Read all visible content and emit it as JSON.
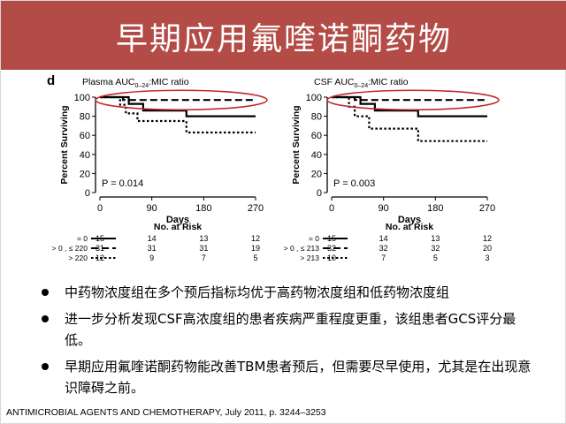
{
  "slide": {
    "title": "早期应用氟喹诺酮药物",
    "panel_letter": "d",
    "bullets": [
      "中药物浓度组在多个预后指标均优于高药物浓度组和低药物浓度组",
      "进一步分析发现CSF高浓度组的患者疾病严重程度更重，该组患者GCS评分最低。",
      "早期应用氟喹诺酮药物能改善TBM患者预后，但需要尽早使用，尤其是在出现意识障碍之前。"
    ],
    "citation": "ANTIMICROBIAL AGENTS AND CHEMOTHERAPY, July 2011, p. 3244–3253",
    "highlight_color": "#c0282d"
  },
  "chart_data": [
    {
      "type": "line",
      "subtype": "kaplan-meier",
      "title_prefix": "Plasma AUC",
      "title_subscript": "0–24",
      "title_suffix": ":MIC ratio",
      "xlabel": "Days",
      "ylabel": "Percent Surviving",
      "xticks": [
        0,
        90,
        180,
        270
      ],
      "yticks": [
        0,
        20,
        40,
        60,
        80,
        100
      ],
      "xlim": [
        0,
        270
      ],
      "ylim": [
        0,
        100
      ],
      "p_value": "P = 0.014",
      "risk_table_title": "No. at Risk",
      "series": [
        {
          "name": "= 0",
          "style": "solid",
          "steps": [
            [
              0,
              100
            ],
            [
              50,
              100
            ],
            [
              50,
              93
            ],
            [
              75,
              93
            ],
            [
              75,
              86
            ],
            [
              150,
              86
            ],
            [
              150,
              80
            ],
            [
              270,
              80
            ]
          ],
          "at_risk": [
            "15",
            "14",
            "13",
            "12"
          ]
        },
        {
          "name": "> 0 , ≤ 220",
          "style": "dashed",
          "steps": [
            [
              0,
              100
            ],
            [
              40,
              100
            ],
            [
              40,
              97
            ],
            [
              270,
              97
            ]
          ],
          "at_risk": [
            "31",
            "31",
            "31",
            "19"
          ]
        },
        {
          "name": "> 220",
          "style": "dotted",
          "steps": [
            [
              0,
              100
            ],
            [
              35,
              100
            ],
            [
              35,
              92
            ],
            [
              45,
              92
            ],
            [
              45,
              83
            ],
            [
              65,
              83
            ],
            [
              65,
              75
            ],
            [
              150,
              75
            ],
            [
              150,
              63
            ],
            [
              270,
              63
            ]
          ],
          "at_risk": [
            "12",
            "9",
            "7",
            "5"
          ]
        }
      ]
    },
    {
      "type": "line",
      "subtype": "kaplan-meier",
      "title_prefix": "CSF AUC",
      "title_subscript": "0–24",
      "title_suffix": ":MIC ratio",
      "xlabel": "Days",
      "ylabel": "Percent Surviving",
      "xticks": [
        0,
        90,
        180,
        270
      ],
      "yticks": [
        0,
        20,
        40,
        60,
        80,
        100
      ],
      "xlim": [
        0,
        270
      ],
      "ylim": [
        0,
        100
      ],
      "p_value": "P = 0.003",
      "risk_table_title": "No. at Risk",
      "series": [
        {
          "name": "= 0",
          "style": "solid",
          "steps": [
            [
              0,
              100
            ],
            [
              50,
              100
            ],
            [
              50,
              93
            ],
            [
              75,
              93
            ],
            [
              75,
              86
            ],
            [
              150,
              86
            ],
            [
              150,
              80
            ],
            [
              270,
              80
            ]
          ],
          "at_risk": [
            "15",
            "14",
            "13",
            "12"
          ]
        },
        {
          "name": "> 0 , ≤ 213",
          "style": "dashed",
          "steps": [
            [
              0,
              100
            ],
            [
              40,
              100
            ],
            [
              40,
              97
            ],
            [
              270,
              97
            ]
          ],
          "at_risk": [
            "32",
            "32",
            "32",
            "20"
          ]
        },
        {
          "name": "> 213",
          "style": "dotted",
          "steps": [
            [
              0,
              100
            ],
            [
              30,
              100
            ],
            [
              30,
              90
            ],
            [
              40,
              90
            ],
            [
              40,
              80
            ],
            [
              65,
              80
            ],
            [
              65,
              67
            ],
            [
              150,
              67
            ],
            [
              150,
              54
            ],
            [
              270,
              54
            ]
          ],
          "at_risk": [
            "10",
            "7",
            "5",
            "3"
          ]
        }
      ]
    }
  ]
}
